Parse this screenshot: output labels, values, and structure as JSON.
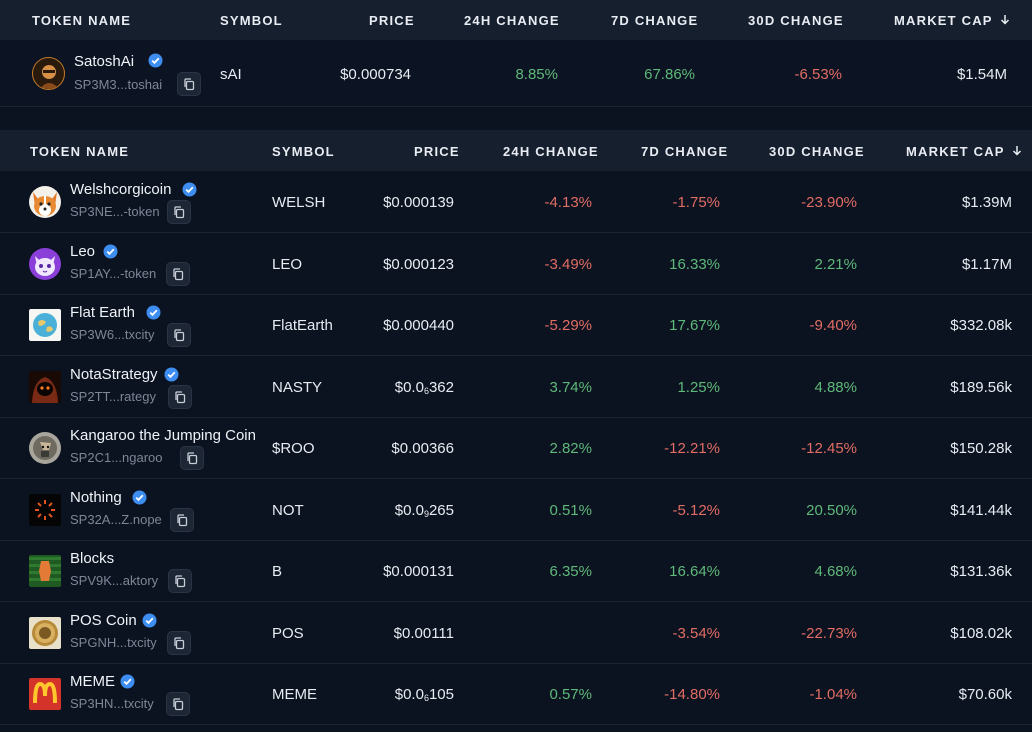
{
  "featured": {
    "headers": {
      "token_name": "TOKEN NAME",
      "symbol": "SYMBOL",
      "price": "PRICE",
      "change_24h": "24H CHANGE",
      "change_7d": "7D CHANGE",
      "change_30d": "30D CHANGE",
      "market_cap": "MARKET CAP"
    },
    "row": {
      "name": "SatoshAi",
      "address": "SP3M3...toshai",
      "symbol": "sAI",
      "price": "$0.000734",
      "change_24h": "8.85%",
      "change_7d": "67.86%",
      "change_30d": "-6.53%",
      "market_cap": "$1.54M",
      "icon": "satoshai-avatar-icon"
    }
  },
  "table": {
    "headers": {
      "token_name": "TOKEN NAME",
      "symbol": "SYMBOL",
      "price": "PRICE",
      "change_24h": "24H CHANGE",
      "change_7d": "7D CHANGE",
      "change_30d": "30D CHANGE",
      "market_cap": "MARKET CAP"
    },
    "rows": [
      {
        "name": "Welshcorgicoin",
        "verified": true,
        "address": "SP3NE...-token",
        "symbol": "WELSH",
        "price": "$0.000139",
        "change_24h": "-4.13%",
        "change_7d": "-1.75%",
        "change_30d": "-23.90%",
        "market_cap": "$1.39M"
      },
      {
        "name": "Leo",
        "verified": true,
        "address": "SP1AY...-token",
        "symbol": "LEO",
        "price": "$0.000123",
        "change_24h": "-3.49%",
        "change_7d": "16.33%",
        "change_30d": "2.21%",
        "market_cap": "$1.17M"
      },
      {
        "name": "Flat Earth",
        "verified": true,
        "address": "SP3W6...txcity",
        "symbol": "FlatEarth",
        "price": "$0.000440",
        "change_24h": "-5.29%",
        "change_7d": "17.67%",
        "change_30d": "-9.40%",
        "market_cap": "$332.08k"
      },
      {
        "name": "NotaStrategy",
        "verified": true,
        "address": "SP2TT...rategy",
        "symbol": "NASTY",
        "price_prefix": "$0.0",
        "price_sub": "6",
        "price_suffix": "362",
        "change_24h": "3.74%",
        "change_7d": "1.25%",
        "change_30d": "4.88%",
        "market_cap": "$189.56k"
      },
      {
        "name": "Kangaroo the Jumping Coin",
        "verified": false,
        "address": "SP2C1...ngaroo",
        "symbol": "$ROO",
        "price": "$0.00366",
        "change_24h": "2.82%",
        "change_7d": "-12.21%",
        "change_30d": "-12.45%",
        "market_cap": "$150.28k"
      },
      {
        "name": "Nothing",
        "verified": true,
        "address": "SP32A...Z.nope",
        "symbol": "NOT",
        "price_prefix": "$0.0",
        "price_sub": "9",
        "price_suffix": "265",
        "change_24h": "0.51%",
        "change_7d": "-5.12%",
        "change_30d": "20.50%",
        "market_cap": "$141.44k"
      },
      {
        "name": "Blocks",
        "verified": false,
        "address": "SPV9K...aktory",
        "symbol": "B",
        "price": "$0.000131",
        "change_24h": "6.35%",
        "change_7d": "16.64%",
        "change_30d": "4.68%",
        "market_cap": "$131.36k"
      },
      {
        "name": "POS Coin",
        "verified": true,
        "address": "SPGNH...txcity",
        "symbol": "POS",
        "price": "$0.00111",
        "change_24h": "",
        "change_7d": "-3.54%",
        "change_30d": "-22.73%",
        "market_cap": "$108.02k"
      },
      {
        "name": "MEME",
        "verified": true,
        "address": "SP3HN...txcity",
        "symbol": "MEME",
        "price_prefix": "$0.0",
        "price_sub": "6",
        "price_suffix": "105",
        "change_24h": "0.57%",
        "change_7d": "-14.80%",
        "change_30d": "-1.04%",
        "market_cap": "$70.60k"
      }
    ]
  },
  "colors": {
    "positive": "#5fb97a",
    "negative": "#e26d64",
    "verified": "#3d8ef0"
  }
}
